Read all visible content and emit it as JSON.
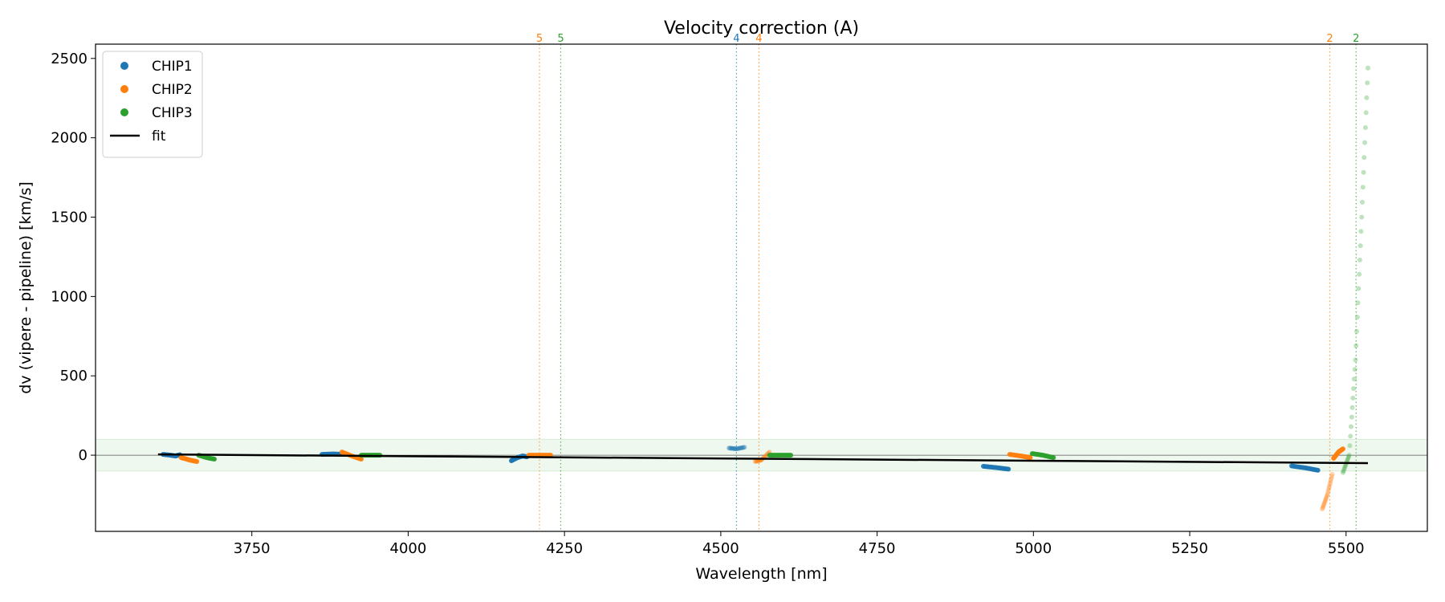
{
  "chart_data": {
    "type": "scatter",
    "title": "Velocity correction (A)",
    "xlabel": "Wavelength [nm]",
    "ylabel": "dv (vipere - pipeline) [km/s]",
    "xlim": [
      3500,
      5630
    ],
    "ylim": [
      -480,
      2590
    ],
    "xticks": [
      "3750",
      "4000",
      "4250",
      "4500",
      "4750",
      "5000",
      "5250",
      "5500"
    ],
    "yticks": [
      "0",
      "500",
      "1000",
      "1500",
      "2000",
      "2500"
    ],
    "tolerance_band": [
      -100,
      100
    ],
    "legend": {
      "position": "upper left",
      "entries": [
        {
          "label": "CHIP1",
          "kind": "dot",
          "color": "#1f77b4"
        },
        {
          "label": "CHIP2",
          "kind": "dot",
          "color": "#ff7f0e"
        },
        {
          "label": "CHIP3",
          "kind": "dot",
          "color": "#2ca02c"
        },
        {
          "label": "fit",
          "kind": "line",
          "color": "#000000"
        }
      ]
    },
    "order_markers": [
      {
        "x": 4210,
        "label": "5",
        "color": "#ff7f0e"
      },
      {
        "x": 4244,
        "label": "5",
        "color": "#2ca02c"
      },
      {
        "x": 4525,
        "label": "4",
        "color": "#1f77b4"
      },
      {
        "x": 4561,
        "label": "4",
        "color": "#ff7f0e"
      },
      {
        "x": 5474,
        "label": "2",
        "color": "#ff7f0e"
      },
      {
        "x": 5516,
        "label": "2",
        "color": "#2ca02c"
      }
    ],
    "fit": {
      "x": [
        3600,
        5535
      ],
      "y": [
        5,
        -50
      ],
      "color": "#000000"
    },
    "series": [
      {
        "name": "CHIP1",
        "color": "#1f77b4",
        "segments": [
          {
            "x": [
              3608,
              3620,
              3628,
              3635
            ],
            "y": [
              5,
              0,
              -5,
              3
            ]
          },
          {
            "x": [
              3862,
              3880,
              3898
            ],
            "y": [
              5,
              8,
              5
            ]
          },
          {
            "x": [
              4165,
              4175,
              4183,
              4190
            ],
            "y": [
              -35,
              -15,
              -5,
              -10
            ]
          },
          {
            "x": [
              4513,
              4525,
              4538
            ],
            "y": [
              45,
              40,
              50
            ],
            "faded": true
          },
          {
            "x": [
              4920,
              4940,
              4960
            ],
            "y": [
              -70,
              -78,
              -88
            ]
          },
          {
            "x": [
              5413,
              5435,
              5455
            ],
            "y": [
              -68,
              -80,
              -95
            ]
          }
        ]
      },
      {
        "name": "CHIP2",
        "color": "#ff7f0e",
        "segments": [
          {
            "x": [
              3637,
              3650,
              3662
            ],
            "y": [
              -15,
              -30,
              -40
            ]
          },
          {
            "x": [
              3894,
              3910,
              3925
            ],
            "y": [
              20,
              -5,
              -25
            ]
          },
          {
            "x": [
              4193,
              4210,
              4228
            ],
            "y": [
              0,
              0,
              0
            ]
          },
          {
            "x": [
              4555,
              4565,
              4578
            ],
            "y": [
              -40,
              -30,
              20
            ],
            "faded": true
          },
          {
            "x": [
              4962,
              4980,
              4995
            ],
            "y": [
              5,
              -5,
              -15
            ]
          },
          {
            "x": [
              5462,
              5470,
              5478
            ],
            "y": [
              -340,
              -250,
              -120
            ],
            "faded": true
          },
          {
            "x": [
              5480,
              5488,
              5495
            ],
            "y": [
              -20,
              20,
              40
            ]
          }
        ]
      },
      {
        "name": "CHIP3",
        "color": "#2ca02c",
        "segments": [
          {
            "x": [
              3665,
              3678,
              3690
            ],
            "y": [
              0,
              -15,
              -25
            ]
          },
          {
            "x": [
              3925,
              3940,
              3955
            ],
            "y": [
              0,
              0,
              0
            ]
          },
          {
            "x": [
              4578,
              4595,
              4612
            ],
            "y": [
              0,
              0,
              0
            ]
          },
          {
            "x": [
              4998,
              5015,
              5032
            ],
            "y": [
              10,
              0,
              -15
            ]
          },
          {
            "x": [
              5495,
              5505,
              5515,
              5525,
              5535
            ],
            "y": [
              -110,
              0,
              600,
              1500,
              2440
            ],
            "faded": true
          }
        ]
      }
    ]
  }
}
